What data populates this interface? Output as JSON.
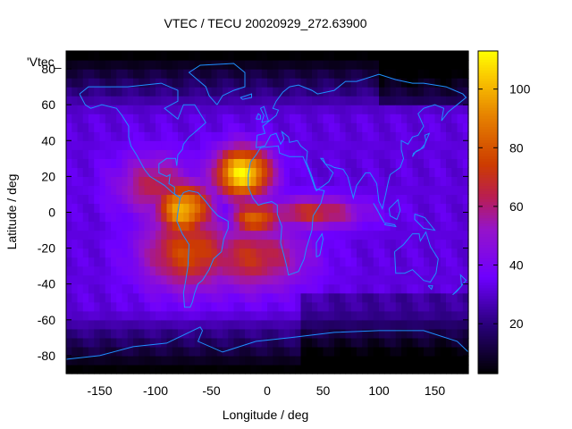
{
  "chart_data": {
    "type": "heatmap",
    "title": "VTEC / TECU 20020929_272.63900",
    "xlabel": "Longitude / deg",
    "ylabel": "Latitude / deg",
    "series_label": "'Vtec_",
    "xlim": [
      -180,
      180
    ],
    "ylim": [
      -90,
      90
    ],
    "xticks": [
      -150,
      -100,
      -50,
      0,
      50,
      100,
      150
    ],
    "yticks": [
      80,
      60,
      40,
      20,
      0,
      -20,
      -40,
      -60,
      -80
    ],
    "colorbar": {
      "range": [
        3,
        113
      ],
      "ticks": [
        20,
        40,
        60,
        80,
        100
      ]
    },
    "hotspots": [
      {
        "lon": -22,
        "lat": 22,
        "value": 112,
        "sx": 18,
        "sy": 10
      },
      {
        "lon": -75,
        "lat": 2,
        "value": 100,
        "sx": 18,
        "sy": 11
      },
      {
        "lon": -10,
        "lat": -3,
        "value": 85,
        "sx": 16,
        "sy": 7
      },
      {
        "lon": 40,
        "lat": 0,
        "value": 70,
        "sx": 32,
        "sy": 6
      },
      {
        "lon": -70,
        "lat": -22,
        "value": 78,
        "sx": 30,
        "sy": 15
      },
      {
        "lon": -15,
        "lat": -25,
        "value": 70,
        "sx": 35,
        "sy": 13
      },
      {
        "lon": -100,
        "lat": 15,
        "value": 65,
        "sx": 25,
        "sy": 12
      }
    ],
    "background_value": 32,
    "coastline_color": "#1e90ff"
  }
}
